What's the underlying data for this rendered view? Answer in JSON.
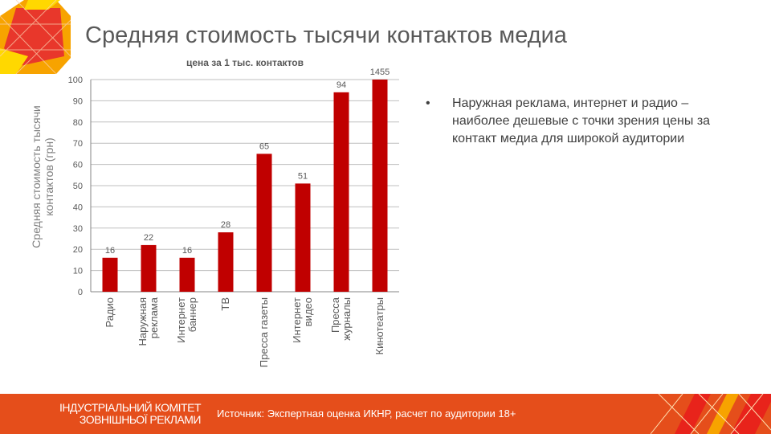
{
  "slide": {
    "title": "Средняя стоимость тысячи контактов медиа"
  },
  "bullet": {
    "symbol": "•",
    "text": "Наружная реклама, интернет и радио – наиболее дешевые с точки зрения цены за контакт медиа для широкой аудитории"
  },
  "footer": {
    "org_line1": "ІНДУСТРІАЛЬНИЙ КОМІТЕТ",
    "org_line2": "ЗОВНІШНЬОЇ РЕКЛАМИ",
    "source": "Источник: Экспертная оценка ИКНР, расчет по аудитории 18+"
  },
  "colors": {
    "bar": "#c00000",
    "footer": "#e54e1b",
    "title": "#595959"
  },
  "chart_data": {
    "type": "bar",
    "title": "цена за 1 тыс. контактов",
    "xlabel": "",
    "ylabel": "Средняя стоимость тысячи контактов (грн)",
    "ylim": [
      0,
      100
    ],
    "yticks": [
      "0",
      "10",
      "20",
      "30",
      "40",
      "50",
      "60",
      "70",
      "80",
      "90",
      "100"
    ],
    "grid": true,
    "categories": [
      "Радио",
      "Наружная реклама",
      "Интернет баннер",
      "ТВ",
      "Пресса газеты",
      "Интернет видео",
      "Пресса журналы",
      "Кинотеатры"
    ],
    "category_lines": [
      [
        "Радио"
      ],
      [
        "Наружная",
        "реклама"
      ],
      [
        "Интернет",
        "баннер"
      ],
      [
        "ТВ"
      ],
      [
        "Пресса газеты"
      ],
      [
        "Интернет",
        "видео"
      ],
      [
        "Пресса",
        "журналы"
      ],
      [
        "Кинотеатры"
      ]
    ],
    "values": [
      16,
      22,
      16,
      28,
      65,
      51,
      94,
      1455
    ],
    "data_labels": [
      "16",
      "22",
      "16",
      "28",
      "65",
      "51",
      "94",
      "1455"
    ]
  }
}
